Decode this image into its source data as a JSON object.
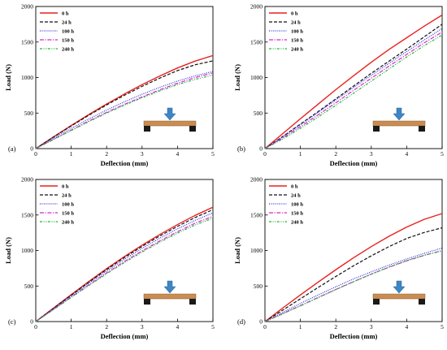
{
  "legend": [
    {
      "label": "0 h",
      "color": "#e8201e",
      "dash": ""
    },
    {
      "label": "24 h",
      "color": "#111111",
      "dash": "4,2"
    },
    {
      "label": "100 h",
      "color": "#2f2fe0",
      "dash": "1,1.4"
    },
    {
      "label": "150 h",
      "color": "#d42bc8",
      "dash": "5,1.6,1.2,1.6"
    },
    {
      "label": "240 h",
      "color": "#22b33a",
      "dash": "3,1.6,1,1.6,1,1.6"
    }
  ],
  "colors": {
    "beam": "#c98d52",
    "support": "#1a1a1a",
    "arrow": "#3d86c6"
  },
  "icons": [
    "beam-test-schematic",
    "load-arrow-icon"
  ],
  "chart_data": [
    {
      "type": "line",
      "panel_label": "(a)",
      "xlabel": "Deflection (mm)",
      "ylabel": "Load (N)",
      "xlim": [
        0,
        5
      ],
      "ylim": [
        0,
        2000
      ],
      "xticks": [
        "0",
        "1",
        "2",
        "3",
        "4",
        "5"
      ],
      "yticks": [
        "0",
        "500",
        "1000",
        "1500",
        "2000"
      ],
      "legend_position": "top-left",
      "grid": false,
      "x": [
        0,
        0.5,
        1,
        1.5,
        2,
        2.5,
        3,
        3.5,
        4,
        4.5,
        5
      ],
      "series": [
        {
          "name": "0 h",
          "values": [
            0,
            165,
            325,
            480,
            628,
            768,
            900,
            1022,
            1135,
            1232,
            1310
          ]
        },
        {
          "name": "24 h",
          "values": [
            0,
            162,
            318,
            470,
            615,
            750,
            876,
            992,
            1098,
            1180,
            1235
          ]
        },
        {
          "name": "100 h",
          "values": [
            0,
            146,
            285,
            418,
            542,
            658,
            765,
            863,
            950,
            1025,
            1085
          ]
        },
        {
          "name": "150 h",
          "values": [
            0,
            130,
            260,
            390,
            510,
            622,
            728,
            828,
            920,
            1000,
            1065
          ]
        },
        {
          "name": "240 h",
          "values": [
            0,
            128,
            255,
            380,
            500,
            612,
            715,
            812,
            900,
            975,
            1035
          ]
        }
      ]
    },
    {
      "type": "line",
      "panel_label": "(b)",
      "xlabel": "Deflection (mm)",
      "ylabel": "Load (N)",
      "xlim": [
        0,
        5
      ],
      "ylim": [
        0,
        2000
      ],
      "xticks": [
        "0",
        "1",
        "2",
        "3",
        "4",
        "5"
      ],
      "yticks": [
        "0",
        "500",
        "1000",
        "1500",
        "2000"
      ],
      "legend_position": "top-left",
      "grid": false,
      "x": [
        0,
        0.5,
        1,
        1.5,
        2,
        2.5,
        3,
        3.5,
        4,
        4.5,
        5
      ],
      "series": [
        {
          "name": "0 h",
          "values": [
            0,
            210,
            420,
            625,
            830,
            1025,
            1215,
            1395,
            1560,
            1725,
            1880
          ]
        },
        {
          "name": "24 h",
          "values": [
            0,
            170,
            345,
            520,
            700,
            880,
            1060,
            1230,
            1400,
            1575,
            1750
          ]
        },
        {
          "name": "100 h",
          "values": [
            0,
            165,
            335,
            510,
            685,
            860,
            1030,
            1200,
            1365,
            1530,
            1690
          ]
        },
        {
          "name": "150 h",
          "values": [
            0,
            150,
            310,
            475,
            645,
            820,
            990,
            1160,
            1325,
            1490,
            1640
          ]
        },
        {
          "name": "240 h",
          "values": [
            0,
            135,
            285,
            445,
            610,
            780,
            950,
            1120,
            1290,
            1450,
            1600
          ]
        }
      ]
    },
    {
      "type": "line",
      "panel_label": "(c)",
      "xlabel": "Deflection (mm)",
      "ylabel": "Load (N)",
      "xlim": [
        0,
        5
      ],
      "ylim": [
        0,
        2000
      ],
      "xticks": [
        "0",
        "1",
        "2",
        "3",
        "4",
        "5"
      ],
      "yticks": [
        "0",
        "500",
        "1000",
        "1500",
        "2000"
      ],
      "legend_position": "top-left",
      "grid": false,
      "x": [
        0,
        0.5,
        1,
        1.5,
        2,
        2.5,
        3,
        3.5,
        4,
        4.5,
        5
      ],
      "series": [
        {
          "name": "0 h",
          "values": [
            0,
            190,
            380,
            565,
            745,
            915,
            1075,
            1225,
            1365,
            1495,
            1610
          ]
        },
        {
          "name": "24 h",
          "values": [
            0,
            185,
            370,
            555,
            732,
            900,
            1058,
            1205,
            1340,
            1465,
            1575
          ]
        },
        {
          "name": "100 h",
          "values": [
            0,
            180,
            360,
            540,
            712,
            876,
            1030,
            1173,
            1305,
            1425,
            1530
          ]
        },
        {
          "name": "150 h",
          "values": [
            0,
            172,
            345,
            518,
            685,
            845,
            995,
            1135,
            1265,
            1385,
            1480
          ]
        },
        {
          "name": "240 h",
          "values": [
            0,
            168,
            338,
            508,
            673,
            830,
            978,
            1117,
            1245,
            1360,
            1455
          ]
        }
      ]
    },
    {
      "type": "line",
      "panel_label": "(d)",
      "xlabel": "Deflection (mm)",
      "ylabel": "Load (N)",
      "xlim": [
        0,
        5
      ],
      "ylim": [
        0,
        2000
      ],
      "xticks": [
        "0",
        "1",
        "2",
        "3",
        "4",
        "5"
      ],
      "yticks": [
        "0",
        "500",
        "1000",
        "1500",
        "2000"
      ],
      "legend_position": "top-left",
      "grid": false,
      "x": [
        0,
        0.5,
        1,
        1.5,
        2,
        2.5,
        3,
        3.5,
        4,
        4.5,
        5
      ],
      "series": [
        {
          "name": "0 h",
          "values": [
            0,
            190,
            375,
            555,
            730,
            898,
            1055,
            1200,
            1330,
            1440,
            1520
          ]
        },
        {
          "name": "24 h",
          "values": [
            0,
            160,
            320,
            480,
            635,
            785,
            925,
            1055,
            1170,
            1255,
            1320
          ]
        },
        {
          "name": "100 h",
          "values": [
            0,
            128,
            255,
            375,
            490,
            600,
            700,
            795,
            882,
            960,
            1035
          ]
        },
        {
          "name": "150 h",
          "values": [
            0,
            112,
            225,
            340,
            452,
            562,
            668,
            765,
            855,
            932,
            1000
          ]
        },
        {
          "name": "240 h",
          "values": [
            0,
            108,
            220,
            335,
            450,
            560,
            668,
            768,
            860,
            935,
            995
          ]
        }
      ]
    }
  ]
}
